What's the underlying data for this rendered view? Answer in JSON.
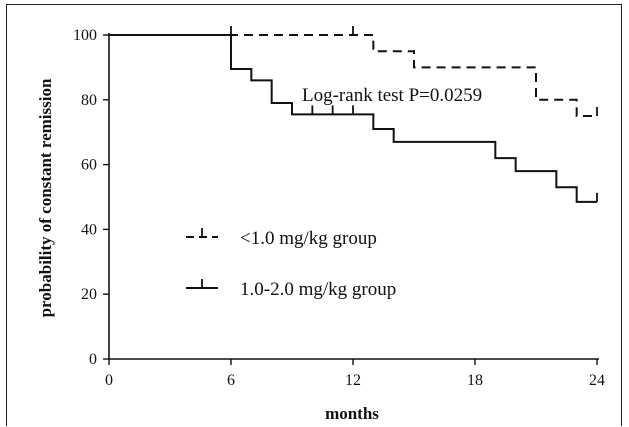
{
  "chart_data": {
    "type": "line",
    "subtype": "kaplan-meier step curve",
    "xlabel": "months",
    "ylabel": "probability of constant remission",
    "xlim": [
      0,
      24
    ],
    "ylim": [
      0,
      100
    ],
    "x_ticks": [
      0,
      6,
      12,
      18,
      24
    ],
    "y_ticks": [
      0,
      20,
      40,
      60,
      80,
      100
    ],
    "grid": false,
    "annotation": "Log-rank test P=0.0259",
    "legend_position": "left-center",
    "series": [
      {
        "name": "<1.0 mg/kg group",
        "line_style": "dashed",
        "color": "#111111",
        "steps": [
          [
            0,
            100
          ],
          [
            13,
            95
          ],
          [
            15,
            90
          ],
          [
            21,
            80
          ],
          [
            23,
            75
          ],
          [
            24,
            75
          ]
        ],
        "censor_ticks": [
          6,
          12,
          24
        ]
      },
      {
        "name": "1.0-2.0 mg/kg group",
        "line_style": "solid",
        "color": "#111111",
        "steps": [
          [
            0,
            100
          ],
          [
            6,
            89.5
          ],
          [
            7,
            86
          ],
          [
            8,
            79
          ],
          [
            9,
            75.5
          ],
          [
            13,
            71
          ],
          [
            14,
            67
          ],
          [
            19,
            62
          ],
          [
            20,
            58
          ],
          [
            22,
            53
          ],
          [
            23,
            48.5
          ],
          [
            24,
            48.5
          ]
        ],
        "censor_ticks": [
          10,
          11,
          12,
          24
        ]
      }
    ]
  }
}
